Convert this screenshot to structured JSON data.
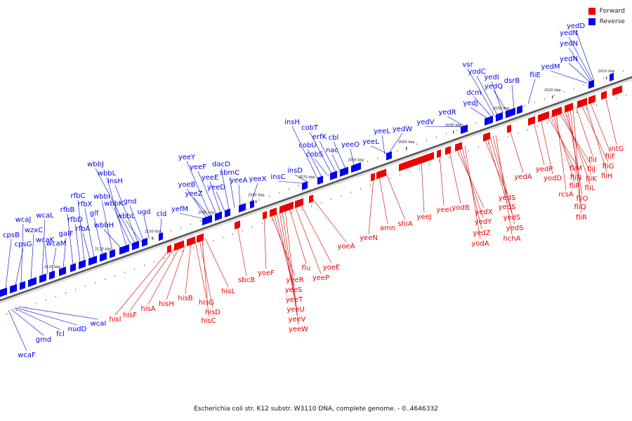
{
  "caption": "Escherichia coli str. K12 substr. W3110 DNA, complete genome. - 0..4646332",
  "legend": [
    {
      "label": "Forward",
      "color": "#ee0000"
    },
    {
      "label": "Reverse",
      "color": "#0000ee"
    }
  ],
  "colors": {
    "forward": "#ee0000",
    "reverse": "#0000ee",
    "axis": "#555555",
    "leader_forward": "#cc0000",
    "leader_reverse": "#0000cc"
  },
  "ticks": [
    "2010 kbp",
    "2020 kbp",
    "2030 kbp",
    "2040 kbp",
    "2050 kbp",
    "2060 kbp",
    "2070 kbp",
    "2080 kbp",
    "2090 kbp",
    "2100 kbp",
    "2110 kbp",
    "2120 kbp"
  ],
  "reverse_labels": [
    "wcaJ",
    "cpsB",
    "cpsG",
    "wzxC",
    "wcaL",
    "wcaM",
    "wcaK",
    "galF",
    "rfbB",
    "rfbD",
    "rfbA",
    "rfbC",
    "rfbX",
    "glf",
    "wbbI",
    "wbbH",
    "wbbL",
    "wbbK",
    "wbbJ",
    "insH",
    "wbbL",
    "gnd",
    "ugd",
    "cld",
    "yefM",
    "yeeZ",
    "yoeB",
    "yeeY",
    "yeeF",
    "yeeE",
    "yeeD",
    "dacD",
    "sbmC",
    "yeeA",
    "yeeX",
    "insC",
    "insD",
    "insH",
    "cobU",
    "cobS",
    "cobT",
    "erfK",
    "nac",
    "cbl",
    "yeeO",
    "yeeL",
    "yeeL",
    "yedW",
    "yedV",
    "yedR",
    "yedJ",
    "dcm",
    "vsr",
    "yodC",
    "yedI",
    "yedQ",
    "dsrB",
    "fliE",
    "yedM",
    "yedN",
    "yedN",
    "yedN",
    "yedD"
  ],
  "reverse_bottom_labels": [
    "wcaF",
    "gmd",
    "fcl",
    "nudD",
    "wcaI"
  ],
  "forward_labels": [
    "hisI",
    "hisF",
    "hisA",
    "hisH",
    "hisB",
    "hisG",
    "hisD",
    "hisC",
    "hisL",
    "sbcB",
    "yoeF",
    "yeeR",
    "yeeS",
    "yeeT",
    "yeeU",
    "yeeV",
    "yeeW",
    "flu",
    "yeeP",
    "yoeE",
    "yoeA",
    "yeeN",
    "amn",
    "shiA",
    "yeeJ",
    "yeeI",
    "yodB",
    "yedX",
    "yedY",
    "yedZ",
    "yodA",
    "yedS",
    "yedS",
    "yedS",
    "yedS",
    "hchA",
    "yedA",
    "yedP",
    "yodD",
    "fliM",
    "fliN",
    "fliP",
    "rcsA",
    "fliJ",
    "fliK",
    "fliL",
    "fliO",
    "fliQ",
    "fliR",
    "fliI",
    "fliG",
    "fliH",
    "fliF",
    "intG"
  ]
}
